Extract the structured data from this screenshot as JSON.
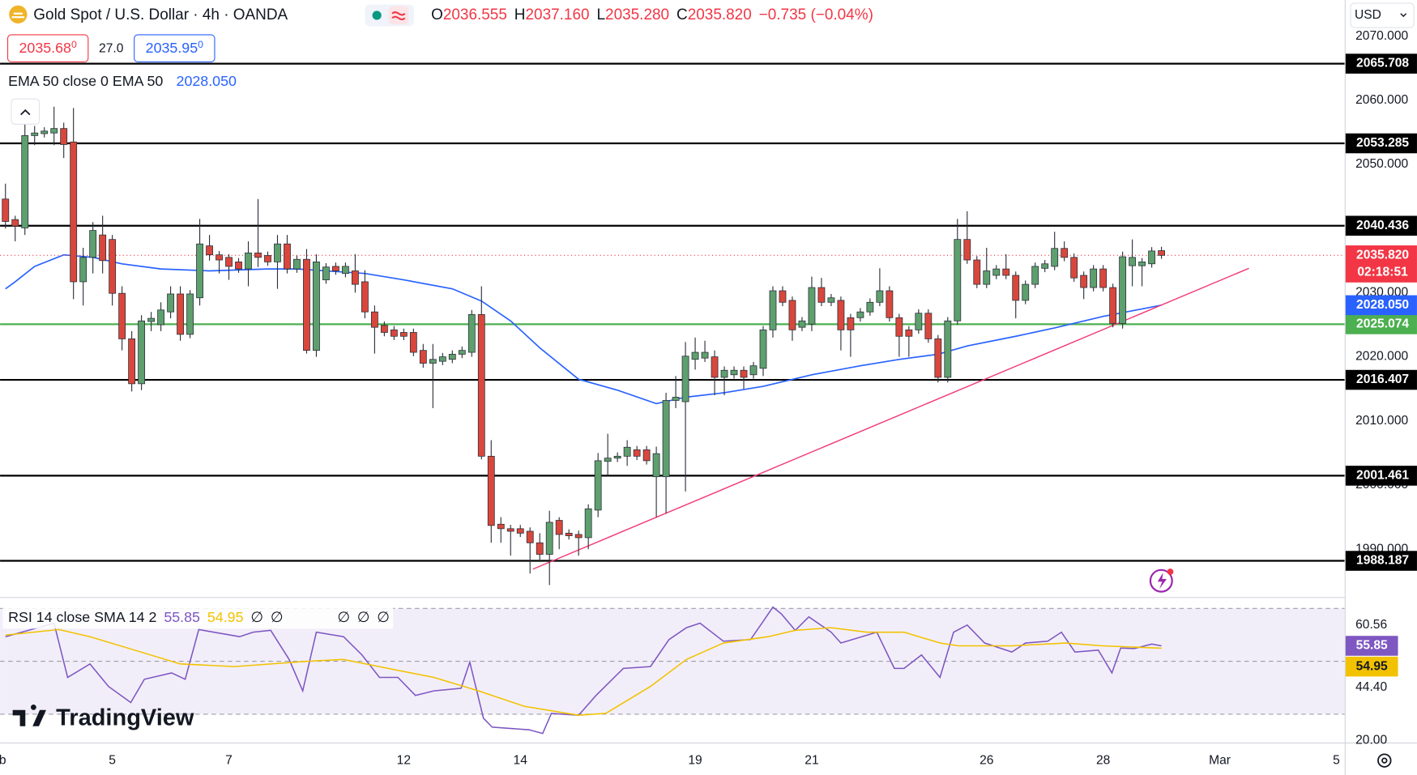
{
  "header": {
    "symbol": "Gold Spot / U.S. Dollar · 4h · OANDA",
    "ohlc": [
      [
        "O",
        "2036.555"
      ],
      [
        "H",
        "2037.160"
      ],
      [
        "L",
        "2035.280"
      ],
      [
        "C",
        "2035.820"
      ]
    ],
    "change": "−0.735 (−0.04%)",
    "bid": [
      "2035.68",
      "0"
    ],
    "spread": "27.0",
    "ask": [
      "2035.95",
      "0"
    ],
    "indicator": "EMA 50 close 0 EMA 50",
    "currency": "USD",
    "logo": "TradingView"
  },
  "chart_data": [
    {
      "type": "candlestick",
      "xlim": [
        -0.56,
        137.86
      ],
      "ylim": [
        1982.68,
        2071.41
      ],
      "xticks": [
        {
          "value": -0.3,
          "label": "b"
        },
        {
          "value": 11,
          "label": "5"
        },
        {
          "value": 23,
          "label": "7"
        },
        {
          "value": 41,
          "label": "12"
        },
        {
          "value": 53,
          "label": "14"
        },
        {
          "value": 71,
          "label": "19"
        },
        {
          "value": 83,
          "label": "21"
        },
        {
          "value": 101,
          "label": "26"
        },
        {
          "value": 113,
          "label": "28"
        },
        {
          "value": 125,
          "label": "Mar"
        },
        {
          "value": 137,
          "label": "5"
        }
      ],
      "yticks": [
        {
          "value": 2070,
          "label": "2070.000"
        },
        {
          "value": 2060,
          "label": "2060.000"
        },
        {
          "value": 2050,
          "label": "2050.000"
        },
        {
          "value": 2040,
          "label": "2040.000"
        },
        {
          "value": 2030,
          "label": "2030.000"
        },
        {
          "value": 2020,
          "label": "2020.000"
        },
        {
          "value": 2010,
          "label": "2010.000"
        },
        {
          "value": 2000,
          "label": "2000.000"
        },
        {
          "value": 1990,
          "label": "1990.000"
        }
      ],
      "up_color": "#5e9f6e",
      "down_color": "#d9473c",
      "open": [
        2044.6,
        2041.4,
        2040.1,
        2054.5,
        2054.8,
        2054.9,
        2055.6,
        2053.5,
        2031.7,
        2035.5,
        2039.0,
        2038.3,
        2029.9,
        2022.8,
        2015.8,
        2025.5,
        2025.0,
        2027.0,
        2029.8,
        2023.5,
        2029.2,
        2037.3,
        2035.9,
        2035.5,
        2034.8,
        2033.7,
        2036.2,
        2035.8,
        2034.8,
        2037.6,
        2033.7,
        2035.2,
        2021.0,
        2032.0,
        2034.1,
        2033.0,
        2033.4,
        2031.7,
        2027.0,
        2024.9,
        2024.2,
        2023.8,
        2023.8,
        2021.0,
        2019.0,
        2019.3,
        2019.6,
        2020.4,
        2020.7,
        2026.6,
        2004.5,
        1993.9,
        1993.2,
        1993.2,
        1992.8,
        1991.0,
        1989.2,
        1994.5,
        1992.5,
        1992.3,
        1991.8,
        1996.1,
        2003.7,
        2004.2,
        2004.5,
        2005.5,
        2005.5,
        2001.3,
        2001.3,
        2013.2,
        2013.0,
        2019.6,
        2019.8,
        2020.0,
        2016.8,
        2017.2,
        2017.9,
        2017.2,
        2018.2,
        2024.2,
        2030.3,
        2028.8,
        2024.6,
        2025.1,
        2030.8,
        2028.5,
        2028.8,
        2026.1,
        2026.1,
        2027.0,
        2028.5,
        2030.3,
        2026.1,
        2024.2,
        2024.2,
        2026.8,
        2022.8,
        2016.8,
        2025.6,
        2038.3,
        2035.1,
        2031.3,
        2032.7,
        2033.7,
        2032.7,
        2028.8,
        2031.3,
        2033.8,
        2034.1,
        2036.9,
        2035.5,
        2032.7,
        2030.8,
        2033.7,
        2030.8,
        2025.2,
        2034.2,
        2034.2,
        2034.5,
        2036.555
      ],
      "high": [
        2047.0,
        2042.0,
        2058.0,
        2056.0,
        2055.8,
        2059.0,
        2056.5,
        2058.8,
        2037.0,
        2041.0,
        2042.0,
        2039.0,
        2031.0,
        2024.0,
        2026.5,
        2027.0,
        2028.5,
        2031.0,
        2031.0,
        2030.4,
        2041.5,
        2039.0,
        2036.5,
        2036.0,
        2035.4,
        2038.0,
        2044.6,
        2036.4,
        2039.0,
        2039.0,
        2035.8,
        2036.8,
        2036.0,
        2034.6,
        2034.7,
        2034.7,
        2036.0,
        2033.5,
        2028.0,
        2025.5,
        2024.8,
        2024.4,
        2024.4,
        2022.0,
        2022.0,
        2020.6,
        2021.0,
        2021.6,
        2027.3,
        2031.0,
        2007.0,
        1995.0,
        1993.8,
        1993.8,
        1993.4,
        1992.5,
        1996.0,
        1995.0,
        1993.1,
        1992.9,
        1997.0,
        2005.0,
        2008.0,
        2005.1,
        2007.0,
        2006.1,
        2006.1,
        2006.0,
        2014.4,
        2017.0,
        2022.3,
        2023.0,
        2022.5,
        2021.0,
        2018.5,
        2018.5,
        2018.5,
        2019.2,
        2024.8,
        2031.0,
        2031.0,
        2029.4,
        2026.2,
        2032.5,
        2032.3,
        2029.8,
        2029.4,
        2026.7,
        2027.6,
        2029.1,
        2033.8,
        2031.0,
        2026.7,
        2024.8,
        2027.4,
        2027.4,
        2023.4,
        2026.2,
        2041.5,
        2042.7,
        2035.7,
        2037.0,
        2034.3,
        2036.0,
        2033.3,
        2031.9,
        2034.7,
        2035.1,
        2039.5,
        2038.0,
        2036.1,
        2033.3,
        2034.3,
        2034.3,
        2031.4,
        2036.4,
        2038.3,
        2035.4,
        2037.1,
        2037.16
      ],
      "low": [
        2040.0,
        2038.0,
        2039.0,
        2053.0,
        2054.2,
        2053.0,
        2051.0,
        2029.0,
        2028.0,
        2033.0,
        2033.0,
        2028.0,
        2021.0,
        2014.6,
        2014.8,
        2024.0,
        2024.0,
        2026.0,
        2022.5,
        2022.9,
        2028.0,
        2035.0,
        2033.0,
        2032.0,
        2033.1,
        2031.0,
        2034.0,
        2034.2,
        2030.6,
        2033.0,
        2033.1,
        2020.5,
        2020.0,
        2031.4,
        2032.8,
        2032.4,
        2030.0,
        2026.0,
        2020.5,
        2023.2,
        2022.6,
        2022.6,
        2020.1,
        2018.3,
        2012.0,
        2018.7,
        2019.0,
        2019.8,
        2020.0,
        2004.0,
        1991.0,
        1991.0,
        1989.0,
        1991.9,
        1986.2,
        1988.0,
        1984.4,
        1990.0,
        1991.5,
        1989.0,
        1990.0,
        1995.0,
        2001.5,
        2003.6,
        2003.0,
        2003.9,
        2003.2,
        1995.0,
        1995.6,
        2012.0,
        1999.0,
        2018.0,
        2019.2,
        2014.0,
        2014.0,
        2016.6,
        2015.0,
        2016.6,
        2017.0,
        2023.0,
        2027.9,
        2022.5,
        2024.0,
        2024.0,
        2027.9,
        2027.9,
        2021.0,
        2020.0,
        2025.5,
        2026.4,
        2027.9,
        2025.5,
        2020.0,
        2020.0,
        2023.6,
        2022.2,
        2016.0,
        2016.0,
        2025.0,
        2034.5,
        2030.7,
        2030.7,
        2032.1,
        2032.1,
        2026.0,
        2028.2,
        2030.7,
        2033.2,
        2033.5,
        2034.9,
        2031.7,
        2029.0,
        2030.2,
        2030.2,
        2024.6,
        2024.4,
        2031.0,
        2031.0,
        2033.9,
        2035.28
      ],
      "close": [
        2041.1,
        2040.4,
        2054.5,
        2054.9,
        2055.2,
        2055.6,
        2053.1,
        2031.7,
        2035.5,
        2039.7,
        2035.0,
        2029.9,
        2022.8,
        2015.8,
        2025.6,
        2026.0,
        2027.3,
        2029.8,
        2023.5,
        2029.8,
        2037.6,
        2035.9,
        2035.1,
        2034.1,
        2033.7,
        2036.2,
        2035.5,
        2034.8,
        2037.6,
        2033.7,
        2035.2,
        2021.0,
        2034.8,
        2034.0,
        2033.4,
        2034.1,
        2031.3,
        2027.0,
        2024.6,
        2023.8,
        2023.2,
        2023.2,
        2020.7,
        2019.0,
        2019.6,
        2020.0,
        2020.4,
        2021.0,
        2026.6,
        2004.5,
        1993.7,
        1993.2,
        1992.8,
        1992.5,
        1991.0,
        1989.2,
        1994.2,
        1992.3,
        1992.1,
        1991.8,
        1996.3,
        2003.8,
        2004.2,
        2004.5,
        2005.9,
        2004.5,
        2003.8,
        2004.9,
        2013.2,
        2013.7,
        2020.1,
        2020.7,
        2020.7,
        2016.8,
        2017.9,
        2017.9,
        2016.8,
        2018.6,
        2024.2,
        2030.3,
        2028.5,
        2024.2,
        2025.6,
        2030.8,
        2028.5,
        2029.2,
        2024.2,
        2024.2,
        2027.0,
        2028.5,
        2030.3,
        2026.1,
        2023.2,
        2023.2,
        2026.8,
        2022.8,
        2016.8,
        2025.6,
        2038.3,
        2035.1,
        2031.3,
        2033.4,
        2033.7,
        2032.7,
        2028.8,
        2031.3,
        2034.1,
        2034.5,
        2036.9,
        2035.5,
        2032.3,
        2030.8,
        2033.7,
        2030.8,
        2025.2,
        2035.6,
        2035.5,
        2034.8,
        2036.5,
        2035.82
      ],
      "hlines": [
        {
          "value": 2065.708,
          "color": "#000000"
        },
        {
          "value": 2053.285,
          "color": "#000000"
        },
        {
          "value": 2040.436,
          "color": "#000000"
        },
        {
          "value": 2025.074,
          "color": "#4caf50"
        },
        {
          "value": 2016.407,
          "color": "#000000"
        },
        {
          "value": 2001.461,
          "color": "#000000"
        },
        {
          "value": 1988.187,
          "color": "#000000"
        }
      ],
      "last_price": {
        "value": 2035.82,
        "label": "2035.820",
        "countdown": "02:18:51",
        "color": "#f23645"
      },
      "ema": {
        "color": "#2962ff",
        "x": [
          0,
          1,
          3,
          6,
          9,
          12,
          16,
          21,
          27,
          30,
          37,
          41,
          46,
          49,
          52,
          55,
          59,
          63,
          67,
          70,
          74,
          78,
          83,
          88,
          92,
          96,
          99,
          104,
          108,
          113,
          119
        ],
        "values": [
          2030.6,
          2031.7,
          2034.1,
          2035.9,
          2035.5,
          2034.5,
          2033.7,
          2033.4,
          2033.7,
          2033.7,
          2033.0,
          2032.0,
          2030.6,
          2028.7,
          2025.6,
          2021.4,
          2016.5,
          2014.8,
          2012.7,
          2013.7,
          2014.4,
          2015.4,
          2017.2,
          2018.6,
          2019.6,
          2020.4,
          2021.7,
          2023.2,
          2024.5,
          2026.3,
          2028.05
        ],
        "last": {
          "value": 2028.05,
          "label": "2028.050"
        }
      },
      "trendline": {
        "x": [
          54.3,
          128
        ],
        "values": [
          1986.9,
          2033.8
        ],
        "color": "#f23c76"
      }
    },
    {
      "type": "line",
      "legend": "RSI 14 close SMA 14 2",
      "ylim": [
        19.3,
        73.6
      ],
      "yticks": [
        60.56,
        {
          "value": 44.4,
          "label": "44.40"
        },
        {
          "value": 20,
          "label": "20.00"
        }
      ],
      "bands": [
        70,
        50,
        30
      ],
      "empty_values": [
        "∅",
        "∅",
        "∅",
        "∅",
        "∅"
      ],
      "series": [
        {
          "color": "#7e57c2",
          "x": [
            0,
            5.0,
            6.4,
            8.7,
            10.6,
            12.9,
            14.3,
            17.1,
            18.5,
            19.9,
            24.1,
            25.5,
            27.3,
            29.2,
            30.6,
            32.0,
            34.8,
            36.7,
            38.5,
            40.4,
            42.2,
            44.1,
            46.9,
            47.8,
            49.2,
            50.1,
            53.9,
            55.3,
            56.2,
            59.0,
            60.8,
            63.6,
            66.4,
            68.3,
            70.1,
            71.5,
            73.9,
            76.7,
            78.0,
            79.0,
            79.9,
            81.3,
            82.7,
            85.0,
            86.0,
            89.7,
            91.5,
            92.5,
            94.3,
            96.2,
            97.6,
            99.0,
            100.8,
            103.6,
            105.0,
            107.3,
            108.7,
            110.1,
            112.5,
            113.9,
            114.8,
            116.2,
            118.0,
            119
          ],
          "values": [
            59.3,
            64.4,
            43.9,
            49.0,
            40.5,
            34.4,
            43.2,
            45.6,
            43.2,
            62.0,
            59.3,
            61.0,
            61.7,
            50.7,
            38.8,
            61.0,
            59.3,
            52.4,
            43.9,
            43.9,
            37.1,
            38.8,
            39.8,
            49.7,
            28.5,
            25.1,
            24.1,
            22.7,
            30.3,
            29.6,
            37.1,
            47.3,
            48.0,
            58.2,
            62.7,
            64.4,
            57.6,
            58.2,
            65.1,
            70.5,
            67.8,
            61.7,
            66.8,
            61.0,
            56.9,
            61.0,
            47.3,
            47.3,
            52.4,
            43.9,
            61.0,
            63.7,
            56.9,
            53.5,
            56.9,
            57.6,
            61.0,
            53.5,
            54.2,
            45.6,
            55.0,
            54.8,
            56.5,
            55.85
          ]
        },
        {
          "color": "#f2c200",
          "x": [
            0,
            5.5,
            8.7,
            13.4,
            18.0,
            23.6,
            27.3,
            31.1,
            34.8,
            39.4,
            44.1,
            48.7,
            53.4,
            59.0,
            61.8,
            66.4,
            70.1,
            73.9,
            78.5,
            81.3,
            85.0,
            88.7,
            92.5,
            96.2,
            98.1,
            103.6,
            109.2,
            112.9,
            119
          ],
          "values": [
            59.9,
            62.0,
            59.3,
            54.1,
            49.0,
            48.0,
            49.0,
            50.0,
            50.7,
            47.3,
            43.9,
            38.8,
            33.0,
            29.6,
            30.3,
            40.5,
            50.7,
            56.9,
            59.3,
            61.7,
            62.7,
            61.0,
            61.0,
            56.9,
            55.85,
            55.85,
            56.9,
            55.85,
            54.95
          ]
        }
      ]
    }
  ]
}
